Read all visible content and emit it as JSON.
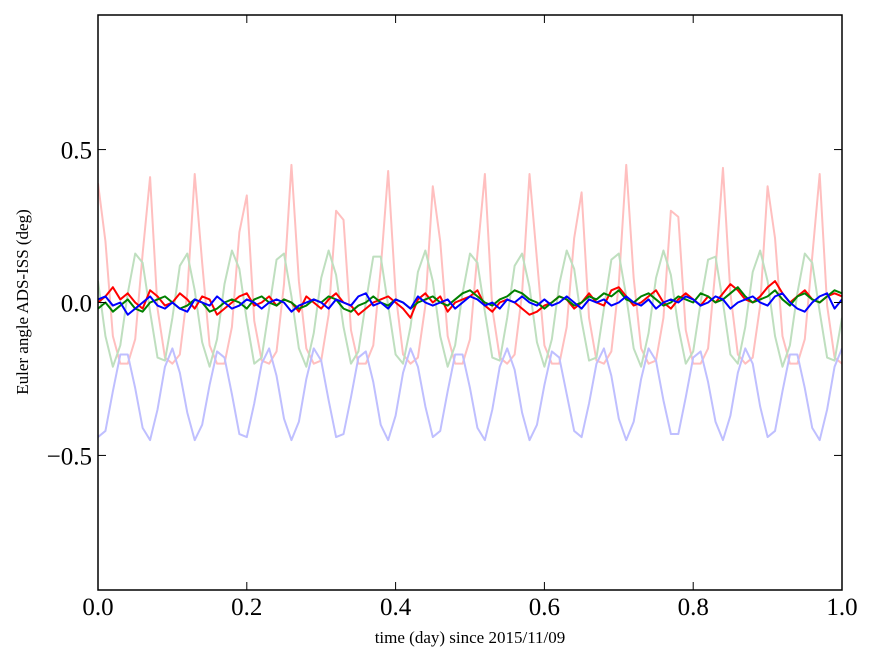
{
  "chart_data": {
    "type": "line",
    "xlabel": "time (day) since 2015/11/09",
    "ylabel": "Euler angle ADS-ISS (deg)",
    "xlim": [
      0,
      1
    ],
    "ylim": [
      -0.94,
      0.94
    ],
    "xticks": [
      {
        "value": 0,
        "label": "0.0"
      },
      {
        "value": 0.2,
        "label": "0.2"
      },
      {
        "value": 0.4,
        "label": "0.4"
      },
      {
        "value": 0.6,
        "label": "0.6"
      },
      {
        "value": 0.8,
        "label": "0.8"
      },
      {
        "value": 1,
        "label": "1.0"
      }
    ],
    "yticks": [
      {
        "value": -0.5,
        "label": "−0.5"
      },
      {
        "value": 0,
        "label": "0.0"
      },
      0.5
    ],
    "grid": false,
    "x": [
      0,
      0.01,
      0.02,
      0.03,
      0.04,
      0.05,
      0.06,
      0.07,
      0.08,
      0.09,
      0.1,
      0.11,
      0.12,
      0.13,
      0.14,
      0.15,
      0.16,
      0.17,
      0.18,
      0.19,
      0.2,
      0.21,
      0.22,
      0.23,
      0.24,
      0.25,
      0.26,
      0.27,
      0.28,
      0.29,
      0.3,
      0.31,
      0.32,
      0.33,
      0.34,
      0.35,
      0.36,
      0.37,
      0.38,
      0.39,
      0.4,
      0.41,
      0.42,
      0.43,
      0.44,
      0.45,
      0.46,
      0.47,
      0.48,
      0.49,
      0.5,
      0.51,
      0.52,
      0.53,
      0.54,
      0.55,
      0.56,
      0.57,
      0.58,
      0.59,
      0.6,
      0.61,
      0.62,
      0.63,
      0.64,
      0.65,
      0.66,
      0.67,
      0.68,
      0.69,
      0.7,
      0.71,
      0.72,
      0.73,
      0.74,
      0.75,
      0.76,
      0.77,
      0.78,
      0.79,
      0.8,
      0.81,
      0.82,
      0.83,
      0.84,
      0.85,
      0.86,
      0.87,
      0.88,
      0.89,
      0.9,
      0.91,
      0.92,
      0.93,
      0.94,
      0.95,
      0.96,
      0.97,
      0.98,
      0.99,
      1
    ],
    "series": [
      {
        "color": "#ffbfbf",
        "values": [
          0.39,
          0.2,
          -0.11,
          -0.2,
          -0.2,
          -0.12,
          0.16,
          0.41,
          -0.02,
          -0.18,
          -0.2,
          -0.17,
          0.03,
          0.42,
          0.13,
          -0.14,
          -0.2,
          -0.2,
          -0.08,
          0.23,
          0.35,
          -0.06,
          -0.19,
          -0.2,
          -0.16,
          0.06,
          0.45,
          0.07,
          -0.15,
          -0.2,
          -0.19,
          -0.04,
          0.3,
          0.27,
          -0.09,
          -0.2,
          -0.2,
          -0.14,
          0.11,
          0.43,
          0.03,
          -0.17,
          -0.2,
          -0.18,
          -0.01,
          0.38,
          0.2,
          -0.11,
          -0.2,
          -0.2,
          -0.12,
          0.16,
          0.42,
          -0.02,
          -0.18,
          -0.2,
          -0.17,
          0.03,
          0.42,
          0.14,
          -0.14,
          -0.2,
          -0.2,
          -0.08,
          0.21,
          0.36,
          -0.05,
          -0.19,
          -0.2,
          -0.16,
          0.06,
          0.45,
          0.08,
          -0.15,
          -0.2,
          -0.19,
          -0.05,
          0.3,
          0.28,
          -0.09,
          -0.2,
          -0.2,
          -0.15,
          0.11,
          0.44,
          0.03,
          -0.17,
          -0.2,
          -0.18,
          -0.01,
          0.38,
          0.21,
          -0.11,
          -0.2,
          -0.2,
          -0.12,
          0.15,
          0.42,
          -0.01,
          -0.18,
          -0.2
        ]
      },
      {
        "color": "#bfdfbf",
        "values": [
          0.07,
          -0.11,
          -0.21,
          -0.14,
          0.03,
          0.16,
          0.13,
          -0.03,
          -0.18,
          -0.19,
          -0.05,
          0.12,
          0.16,
          0.04,
          -0.13,
          -0.21,
          -0.12,
          0.06,
          0.17,
          0.11,
          -0.06,
          -0.2,
          -0.18,
          -0.02,
          0.14,
          0.16,
          0.02,
          -0.15,
          -0.21,
          -0.1,
          0.08,
          0.17,
          0.09,
          -0.08,
          -0.2,
          -0.16,
          0,
          0.15,
          0.15,
          -0.01,
          -0.17,
          -0.2,
          -0.08,
          0.1,
          0.17,
          0.07,
          -0.11,
          -0.21,
          -0.14,
          0.03,
          0.16,
          0.13,
          -0.03,
          -0.18,
          -0.19,
          -0.05,
          0.12,
          0.16,
          0.05,
          -0.13,
          -0.21,
          -0.12,
          0.06,
          0.17,
          0.11,
          -0.06,
          -0.19,
          -0.18,
          -0.02,
          0.14,
          0.16,
          0.02,
          -0.15,
          -0.21,
          -0.1,
          0.08,
          0.17,
          0.09,
          -0.08,
          -0.2,
          -0.16,
          0,
          0.14,
          0.15,
          0,
          -0.17,
          -0.2,
          -0.08,
          0.1,
          0.17,
          0.07,
          -0.11,
          -0.21,
          -0.14,
          0.03,
          0.16,
          0.13,
          -0.03,
          -0.18,
          -0.19,
          -0.05
        ]
      },
      {
        "color": "#bfbfff",
        "values": [
          -0.44,
          -0.42,
          -0.29,
          -0.17,
          -0.17,
          -0.28,
          -0.41,
          -0.45,
          -0.35,
          -0.21,
          -0.15,
          -0.23,
          -0.36,
          -0.45,
          -0.4,
          -0.27,
          -0.16,
          -0.18,
          -0.3,
          -0.43,
          -0.44,
          -0.33,
          -0.2,
          -0.15,
          -0.24,
          -0.38,
          -0.45,
          -0.39,
          -0.25,
          -0.15,
          -0.19,
          -0.32,
          -0.44,
          -0.43,
          -0.31,
          -0.18,
          -0.16,
          -0.26,
          -0.4,
          -0.45,
          -0.37,
          -0.23,
          -0.15,
          -0.21,
          -0.34,
          -0.44,
          -0.42,
          -0.29,
          -0.17,
          -0.17,
          -0.28,
          -0.41,
          -0.45,
          -0.35,
          -0.21,
          -0.15,
          -0.22,
          -0.36,
          -0.45,
          -0.4,
          -0.27,
          -0.16,
          -0.18,
          -0.3,
          -0.42,
          -0.44,
          -0.33,
          -0.2,
          -0.15,
          -0.24,
          -0.38,
          -0.45,
          -0.39,
          -0.25,
          -0.15,
          -0.19,
          -0.32,
          -0.43,
          -0.43,
          -0.31,
          -0.18,
          -0.16,
          -0.26,
          -0.39,
          -0.45,
          -0.37,
          -0.23,
          -0.15,
          -0.2,
          -0.34,
          -0.44,
          -0.42,
          -0.29,
          -0.17,
          -0.17,
          -0.28,
          -0.41,
          -0.45,
          -0.35,
          -0.21,
          -0.15
        ]
      },
      {
        "color": "#ff0000",
        "values": [
          0,
          0.02,
          0.05,
          0.01,
          0.03,
          0,
          -0.02,
          0.04,
          0.02,
          -0.01,
          0,
          0.03,
          0.01,
          -0.02,
          0.02,
          0.01,
          -0.04,
          -0.02,
          0,
          0.02,
          0.03,
          -0.01,
          0,
          0.02,
          -0.01,
          0.01,
          0,
          -0.03,
          0.02,
          0,
          -0.02,
          0.01,
          0.03,
          0,
          -0.01,
          -0.04,
          -0.02,
          0,
          0.01,
          0.02,
          0,
          -0.02,
          -0.05,
          0.01,
          0.03,
          0,
          0.02,
          -0.03,
          0,
          0.01,
          0.02,
          0.04,
          -0.01,
          -0.03,
          0,
          0.01,
          0,
          -0.02,
          -0.04,
          -0.03,
          -0.01,
          0,
          0.02,
          0.01,
          -0.02,
          0,
          0.03,
          0,
          -0.01,
          0.04,
          0.05,
          0.02,
          -0.01,
          0,
          0.02,
          0.04,
          0,
          -0.02,
          0.01,
          0.03,
          0.01,
          -0.01,
          0.02,
          0,
          0.03,
          0.06,
          0.04,
          0.01,
          0,
          0.02,
          0.05,
          0.07,
          0.03,
          0,
          0.02,
          0.04,
          0.01,
          0,
          0.02,
          0.03,
          0.02
        ]
      },
      {
        "color": "#008000",
        "values": [
          -0.02,
          0,
          -0.03,
          -0.01,
          0.01,
          -0.02,
          -0.03,
          0,
          0.01,
          0.02,
          0,
          -0.02,
          -0.01,
          0.01,
          0,
          -0.03,
          -0.02,
          0,
          0.01,
          0,
          -0.02,
          0.01,
          0.02,
          0,
          -0.01,
          0.01,
          0,
          -0.02,
          -0.01,
          0.01,
          0,
          0.02,
          0.01,
          -0.02,
          -0.03,
          -0.01,
          0,
          0.02,
          0,
          -0.01,
          0.01,
          0,
          -0.02,
          0,
          0.01,
          0.02,
          0,
          -0.01,
          0.01,
          0.03,
          0.04,
          0.02,
          0,
          -0.01,
          0.01,
          0.02,
          0.04,
          0.03,
          0.01,
          0,
          -0.02,
          0,
          0.02,
          0.01,
          -0.01,
          0,
          0.02,
          0.01,
          0.03,
          0.02,
          0.04,
          0.01,
          0,
          0.02,
          0.03,
          0.01,
          -0.01,
          0,
          0.02,
          0.01,
          0,
          0.03,
          0.02,
          0,
          0.01,
          0.03,
          0.05,
          0.02,
          0,
          0.01,
          0.02,
          0.04,
          0.01,
          -0.01,
          0.02,
          0.03,
          0.01,
          0,
          0.02,
          0.04,
          0.03
        ]
      },
      {
        "color": "#0000ff",
        "values": [
          0.01,
          0.02,
          -0.01,
          0,
          -0.04,
          -0.02,
          0,
          0.02,
          -0.01,
          -0.02,
          0,
          -0.02,
          -0.03,
          0.01,
          0,
          -0.01,
          0.02,
          0,
          -0.02,
          -0.01,
          0.01,
          0,
          -0.02,
          0,
          0.01,
          0,
          -0.03,
          -0.01,
          0,
          0.01,
          0,
          -0.02,
          0.01,
          0,
          -0.01,
          0.02,
          0.03,
          -0.01,
          0,
          -0.02,
          0.01,
          0,
          -0.02,
          0.02,
          0,
          -0.01,
          0,
          0.01,
          -0.02,
          0,
          0.02,
          0.01,
          -0.01,
          0,
          -0.02,
          0.01,
          0,
          0.02,
          0,
          -0.01,
          0.01,
          -0.01,
          0,
          0.02,
          0,
          -0.02,
          0.01,
          0,
          0.01,
          -0.01,
          0,
          0.02,
          0,
          -0.01,
          0.01,
          -0.02,
          0,
          0.01,
          0,
          0.02,
          0.01,
          -0.01,
          0,
          0.02,
          0.01,
          -0.02,
          0,
          0.01,
          0.02,
          0,
          -0.01,
          0.02,
          0.03,
          0,
          -0.02,
          -0.03,
          0,
          0.02,
          0.03,
          -0.02,
          0.01
        ]
      }
    ]
  }
}
